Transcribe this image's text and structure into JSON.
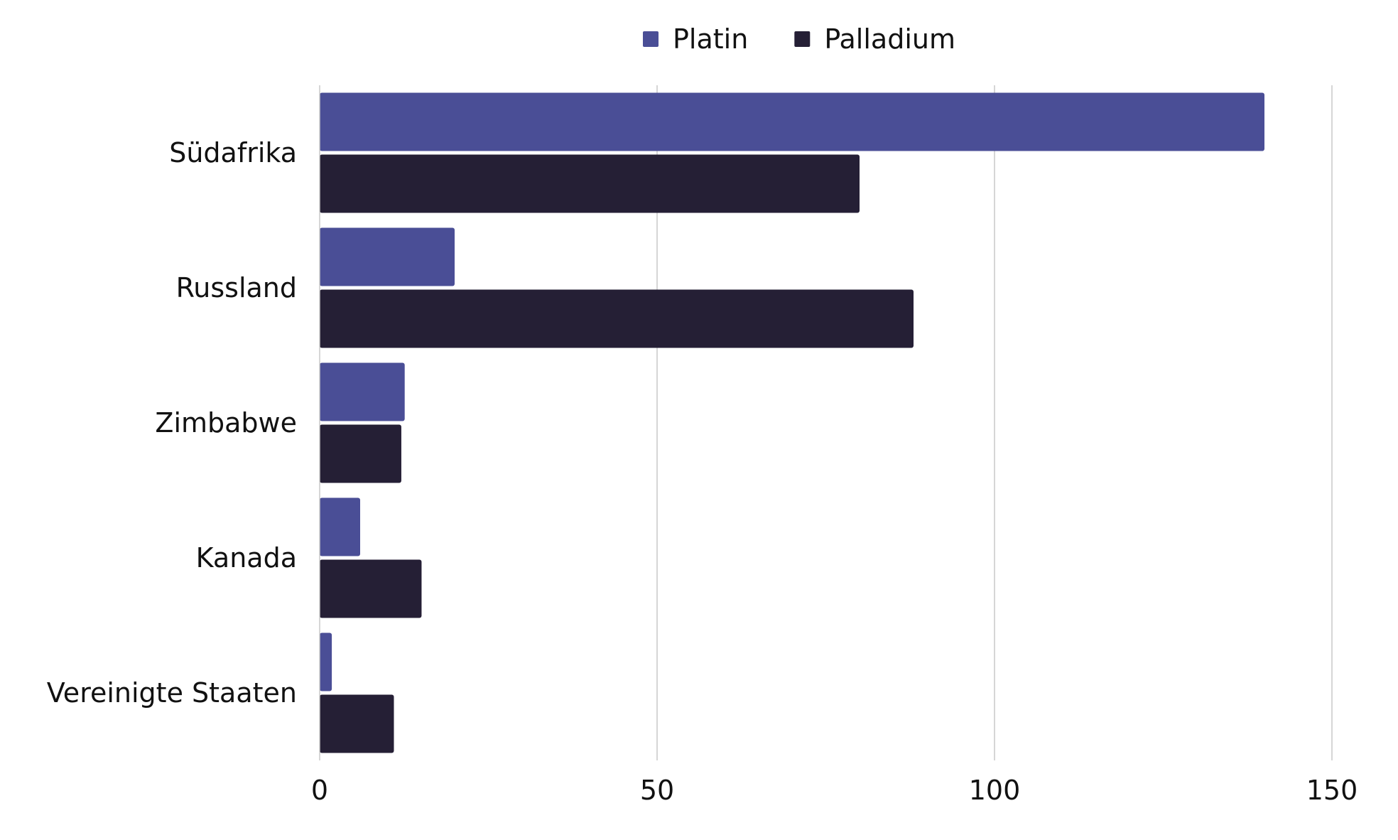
{
  "chart_data": {
    "type": "bar",
    "orientation": "horizontal",
    "categories": [
      "Südafrika",
      "Russland",
      "Zimbabwe",
      "Kanada",
      "Vereinigte Staaten"
    ],
    "series": [
      {
        "name": "Platin",
        "color": "#4a4e96",
        "values": [
          140,
          20,
          12.6,
          6,
          1.8
        ]
      },
      {
        "name": "Palladium",
        "color": "#251f35",
        "values": [
          80,
          88,
          12.1,
          15.1,
          11
        ]
      }
    ],
    "xlim": [
      0,
      150
    ],
    "xticks": [
      0,
      50,
      100,
      150
    ],
    "xtick_labels": [
      "0",
      "50",
      "100",
      "150"
    ],
    "grid": "vertical",
    "legend_position": "top-center",
    "title": "",
    "xlabel": "",
    "ylabel": ""
  }
}
